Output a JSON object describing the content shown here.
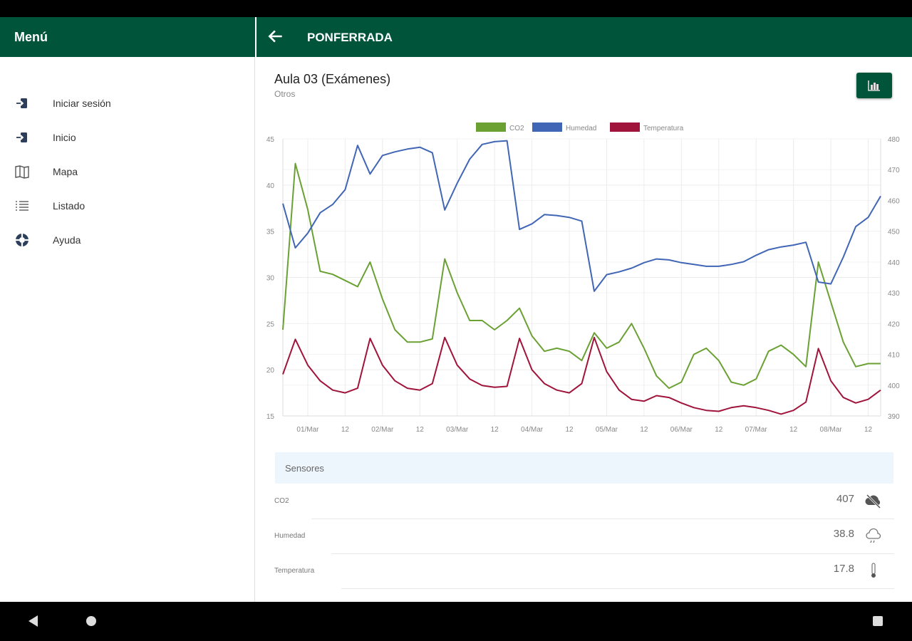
{
  "sidebar": {
    "title": "Menú",
    "items": [
      {
        "label": "Iniciar sesión",
        "icon": "login-icon"
      },
      {
        "label": "Inicio",
        "icon": "login-icon"
      },
      {
        "label": "Mapa",
        "icon": "map-icon"
      },
      {
        "label": "Listado",
        "icon": "list-icon"
      },
      {
        "label": "Ayuda",
        "icon": "lifebuoy-icon"
      }
    ]
  },
  "header": {
    "title": "PONFERRADA",
    "back_icon": "arrow-left-icon"
  },
  "room": {
    "title": "Aula 03 (Exámenes)",
    "subtitle": "Otros",
    "chart_button_icon": "bar-chart-icon"
  },
  "colors": {
    "brand": "#00543a",
    "co2": "#6aa132",
    "humedad": "#4166b5",
    "temperatura": "#a0143c"
  },
  "chart_data": {
    "type": "line",
    "legend_position": "top-center",
    "grid": true,
    "x": [
      "28/Feb 16:00",
      "28/Feb 20:00",
      "01/Mar 00:00",
      "01/Mar 04:00",
      "01/Mar 08:00",
      "01/Mar 12:00",
      "01/Mar 16:00",
      "01/Mar 20:00",
      "02/Mar 00:00",
      "02/Mar 04:00",
      "02/Mar 08:00",
      "02/Mar 12:00",
      "02/Mar 16:00",
      "02/Mar 20:00",
      "03/Mar 00:00",
      "03/Mar 04:00",
      "03/Mar 08:00",
      "03/Mar 12:00",
      "03/Mar 16:00",
      "03/Mar 20:00",
      "04/Mar 00:00",
      "04/Mar 04:00",
      "04/Mar 08:00",
      "04/Mar 12:00",
      "04/Mar 16:00",
      "04/Mar 20:00",
      "05/Mar 00:00",
      "05/Mar 04:00",
      "05/Mar 08:00",
      "05/Mar 12:00",
      "05/Mar 16:00",
      "05/Mar 20:00",
      "06/Mar 00:00",
      "06/Mar 04:00",
      "06/Mar 08:00",
      "06/Mar 12:00",
      "06/Mar 16:00",
      "06/Mar 20:00",
      "07/Mar 00:00",
      "07/Mar 04:00",
      "07/Mar 08:00",
      "07/Mar 12:00",
      "07/Mar 16:00",
      "07/Mar 20:00",
      "08/Mar 00:00",
      "08/Mar 04:00",
      "08/Mar 08:00",
      "08/Mar 12:00",
      "08/Mar 16:00"
    ],
    "x_tick_labels": [
      "01/Mar",
      "12",
      "02/Mar",
      "12",
      "03/Mar",
      "12",
      "04/Mar",
      "12",
      "05/Mar",
      "12",
      "06/Mar",
      "12",
      "07/Mar",
      "12",
      "08/Mar",
      "12"
    ],
    "y_left": {
      "ylim": [
        15,
        45
      ],
      "ticks": [
        "15",
        "20",
        "25",
        "30",
        "35",
        "40",
        "45"
      ]
    },
    "y_right": {
      "ylim": [
        390,
        480
      ],
      "ticks": [
        "390",
        "400",
        "410",
        "420",
        "430",
        "440",
        "450",
        "460",
        "470",
        "480"
      ]
    },
    "series": [
      {
        "name": "CO2",
        "axis": "right",
        "color": "#6aa132",
        "values": [
          418,
          472,
          457,
          437,
          436,
          434,
          432,
          440,
          428,
          418,
          414,
          414,
          415,
          441,
          430,
          421,
          421,
          418,
          421,
          425,
          416,
          411,
          412,
          411,
          408,
          417,
          412,
          414,
          420,
          412,
          403,
          399,
          401,
          410,
          412,
          408,
          401,
          400,
          402,
          411,
          413,
          410,
          406,
          440,
          427,
          414,
          406,
          407,
          407
        ]
      },
      {
        "name": "Humedad",
        "axis": "left",
        "color": "#4166b5",
        "values": [
          38.0,
          33.2,
          34.8,
          37.0,
          37.9,
          39.5,
          44.3,
          41.2,
          43.2,
          43.6,
          43.9,
          44.1,
          43.5,
          37.3,
          40.2,
          42.8,
          44.4,
          44.7,
          44.8,
          35.2,
          35.8,
          36.8,
          36.7,
          36.5,
          36.1,
          28.5,
          30.3,
          30.6,
          31.0,
          31.6,
          32.0,
          31.9,
          31.6,
          31.4,
          31.2,
          31.2,
          31.4,
          31.7,
          32.4,
          33.0,
          33.3,
          33.5,
          33.8,
          29.5,
          29.3,
          32.2,
          35.5,
          36.5,
          38.8
        ]
      },
      {
        "name": "Temperatura",
        "axis": "left",
        "color": "#a0143c",
        "values": [
          19.5,
          23.3,
          20.5,
          18.8,
          17.8,
          17.5,
          18.0,
          23.4,
          20.5,
          18.8,
          18.0,
          17.8,
          18.5,
          23.5,
          20.5,
          19.0,
          18.3,
          18.1,
          18.2,
          23.4,
          20.0,
          18.5,
          17.8,
          17.5,
          18.5,
          23.5,
          19.8,
          17.8,
          16.8,
          16.6,
          17.2,
          17.0,
          16.4,
          15.9,
          15.6,
          15.5,
          15.9,
          16.1,
          15.9,
          15.6,
          15.2,
          15.6,
          16.5,
          22.3,
          18.8,
          17.0,
          16.4,
          16.8,
          17.8
        ]
      }
    ]
  },
  "sensors": {
    "title": "Sensores",
    "rows": [
      {
        "name": "CO2",
        "value": "407",
        "icon": "cloud-off-icon"
      },
      {
        "name": "Humedad",
        "value": "38.8",
        "icon": "cloud-rain-icon"
      },
      {
        "name": "Temperatura",
        "value": "17.8",
        "icon": "thermometer-icon"
      }
    ]
  }
}
